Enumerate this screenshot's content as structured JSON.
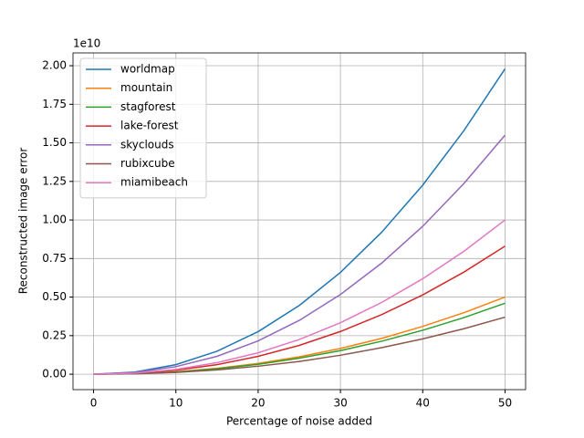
{
  "chart_data": {
    "type": "line",
    "xlabel": "Percentage of noise added",
    "ylabel": "Reconstructed image error",
    "y_offset_label": "1e10",
    "x": [
      0,
      5,
      10,
      15,
      20,
      25,
      30,
      35,
      40,
      45,
      50
    ],
    "series": [
      {
        "name": "worldmap",
        "color": "#1f77b4",
        "values": [
          0,
          0.014,
          0.062,
          0.149,
          0.276,
          0.446,
          0.66,
          0.92,
          1.226,
          1.579,
          1.98
        ]
      },
      {
        "name": "mountain",
        "color": "#ff7f0e",
        "values": [
          0,
          0.004,
          0.016,
          0.038,
          0.07,
          0.113,
          0.167,
          0.232,
          0.31,
          0.399,
          0.5
        ]
      },
      {
        "name": "stagforest",
        "color": "#2ca02c",
        "values": [
          0,
          0.003,
          0.014,
          0.035,
          0.064,
          0.104,
          0.153,
          0.214,
          0.285,
          0.367,
          0.46
        ]
      },
      {
        "name": "lake-forest",
        "color": "#d62728",
        "values": [
          0,
          0.006,
          0.026,
          0.062,
          0.116,
          0.187,
          0.277,
          0.386,
          0.514,
          0.662,
          0.83
        ]
      },
      {
        "name": "skyclouds",
        "color": "#9467bd",
        "values": [
          0,
          0.011,
          0.049,
          0.116,
          0.216,
          0.349,
          0.517,
          0.72,
          0.959,
          1.236,
          1.55
        ]
      },
      {
        "name": "rubixcube",
        "color": "#8c564b",
        "values": [
          0,
          0.003,
          0.012,
          0.028,
          0.052,
          0.083,
          0.123,
          0.172,
          0.229,
          0.295,
          0.37
        ]
      },
      {
        "name": "miamibeach",
        "color": "#e377c2",
        "values": [
          0,
          0.007,
          0.031,
          0.075,
          0.139,
          0.225,
          0.334,
          0.465,
          0.619,
          0.797,
          1.0
        ]
      }
    ],
    "xlim": [
      -2.5,
      52.5
    ],
    "xticks": [
      0,
      10,
      20,
      30,
      40,
      50
    ],
    "ylim": [
      -0.1,
      2.083
    ],
    "yticks": [
      {
        "value": 0,
        "label": "0.00"
      },
      {
        "value": 0.25,
        "label": "0.25"
      },
      {
        "value": 0.5,
        "label": "0.50"
      },
      {
        "value": 0.75,
        "label": "0.75"
      },
      {
        "value": 1,
        "label": "1.00"
      },
      {
        "value": 1.25,
        "label": "1.25"
      },
      {
        "value": 1.5,
        "label": "1.50"
      },
      {
        "value": 1.75,
        "label": "1.75"
      },
      {
        "value": 2,
        "label": "2.00"
      }
    ],
    "grid": true,
    "legend": "upper-left"
  }
}
